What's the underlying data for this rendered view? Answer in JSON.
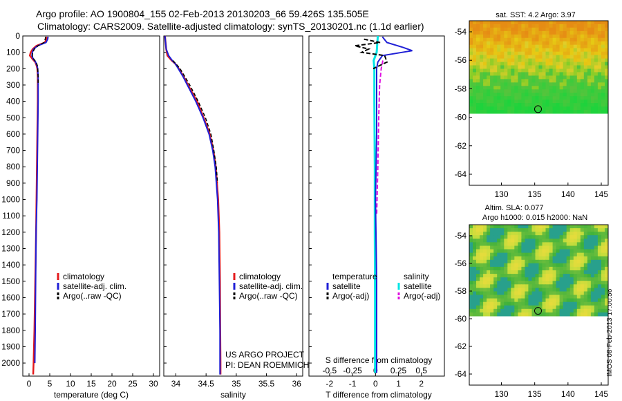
{
  "header": {
    "line1": "Argo profile: AO 1900804_155 02-Feb-2013 20130203_66 59.426S 135.505E",
    "line2": "Climatology: CARS2009. Satellite-adjusted climatology: synTS_20130201.nc (1.1d earlier)"
  },
  "stamp": "IMOS 08-Feb-2013 17:00:56",
  "colors": {
    "clim": "#e41a1c",
    "sat": "#1f1fd6",
    "argo": "#000000",
    "sat_s": "#00e5e5",
    "argo_s": "#e010e0"
  },
  "panels": {
    "temperature": {
      "xlabel": "temperature (deg C)"
    },
    "salinity": {
      "xlabel": "salinity",
      "credit1": "US ARGO PROJECT",
      "credit2": "PI: DEAN ROEMMICH"
    },
    "difference": {
      "xlabel": "T difference from climatology",
      "toplabel": "S difference from climatology"
    }
  },
  "legend_ts": {
    "items": [
      "climatology",
      "satellite-adj. clim.",
      "Argo(..raw -QC)"
    ]
  },
  "legend_diff": {
    "temperature": "temperature",
    "salinity": "salinity",
    "sat": "satellite",
    "argo": "Argo(-adj)"
  },
  "maps": {
    "sst_title": "sat. SST: 4.2 Argo: 3.97",
    "sla_title1": "Altim. SLA: 0.077",
    "sla_title2": "Argo h1000: 0.015 h2000: NaN",
    "lat_ticks": [
      "-54",
      "-56",
      "-58",
      "-60",
      "-62",
      "-64"
    ],
    "lon_ticks": [
      "130",
      "135",
      "140",
      "145"
    ],
    "lat_values": [
      -54,
      -56,
      -58,
      -60,
      -62,
      -64
    ],
    "lon_values": [
      130,
      135,
      140,
      145
    ]
  },
  "chart_data": [
    {
      "type": "line",
      "xlabel": "temperature (deg C)",
      "ylabel": "",
      "xlim": [
        -1.5,
        31.5
      ],
      "ylim": [
        0,
        2080
      ],
      "xticks": [
        "0",
        "5",
        "10",
        "15",
        "20",
        "25",
        "30"
      ],
      "yticks": [
        "0",
        "100",
        "200",
        "300",
        "400",
        "500",
        "600",
        "700",
        "800",
        "900",
        "1000",
        "1100",
        "1200",
        "1300",
        "1400",
        "1500",
        "1600",
        "1700",
        "1800",
        "1900",
        "2000"
      ],
      "series": [
        {
          "name": "climatology",
          "y": [
            5,
            20,
            40,
            60,
            80,
            100,
            120,
            140,
            160,
            180,
            200,
            250,
            300,
            400,
            600,
            800,
            1000,
            1200,
            1500,
            1800,
            2000,
            2070
          ],
          "x": [
            4.3,
            4.2,
            3.8,
            1.8,
            0.9,
            0.4,
            0.2,
            0.8,
            1.5,
            1.8,
            2.0,
            2.1,
            2.1,
            2.1,
            2.0,
            1.9,
            1.8,
            1.7,
            1.5,
            1.3,
            1.1,
            1.0
          ]
        },
        {
          "name": "satellite-adj. clim.",
          "y": [
            5,
            20,
            40,
            60,
            80,
            100,
            120,
            140,
            160,
            180,
            200,
            250,
            300,
            400,
            600,
            800,
            1000,
            1200,
            1500,
            1800,
            2000
          ],
          "x": [
            4.6,
            4.5,
            4.1,
            2.1,
            1.1,
            0.8,
            0.7,
            1.0,
            1.6,
            1.9,
            2.1,
            2.2,
            2.2,
            2.2,
            2.1,
            2.0,
            1.9,
            1.7,
            1.6,
            1.5,
            1.4
          ]
        },
        {
          "name": "Argo(..raw -QC)",
          "y": [
            5,
            20,
            40,
            60,
            80,
            100,
            120,
            140,
            160,
            180,
            200,
            250,
            300
          ],
          "x": [
            4.0,
            3.9,
            3.6,
            2.2,
            1.3,
            0.9,
            0.8,
            1.1,
            1.7,
            2.0,
            2.1,
            2.2,
            2.2
          ]
        }
      ]
    },
    {
      "type": "line",
      "xlabel": "salinity",
      "ylabel": "",
      "xlim": [
        33.8,
        36.1
      ],
      "ylim": [
        0,
        2080
      ],
      "xticks": [
        "34",
        "34.5",
        "35",
        "35.5",
        "36"
      ],
      "series": [
        {
          "name": "climatology",
          "y": [
            0,
            80,
            120,
            150,
            170,
            200,
            250,
            300,
            400,
            500,
            600,
            700,
            800,
            1000,
            1200,
            1500,
            1800,
            2000,
            2070
          ],
          "x": [
            33.82,
            33.84,
            33.86,
            33.93,
            33.99,
            34.05,
            34.13,
            34.2,
            34.35,
            34.46,
            34.56,
            34.62,
            34.66,
            34.7,
            34.72,
            34.73,
            34.735,
            34.74,
            34.74
          ]
        },
        {
          "name": "satellite-adj. clim.",
          "y": [
            0,
            80,
            120,
            150,
            170,
            200,
            250,
            300,
            400,
            500,
            600,
            700,
            800,
            1000,
            1200,
            1500,
            1800,
            2000,
            2070
          ],
          "x": [
            33.82,
            33.84,
            33.88,
            33.94,
            33.99,
            34.04,
            34.12,
            34.19,
            34.33,
            34.45,
            34.55,
            34.61,
            34.65,
            34.69,
            34.71,
            34.72,
            34.73,
            34.73,
            34.73
          ]
        },
        {
          "name": "Argo(..raw -QC)",
          "y": [
            150,
            170,
            200,
            250,
            300,
            400,
            500,
            600,
            700,
            800,
            900
          ],
          "x": [
            33.95,
            34.0,
            34.07,
            34.15,
            34.23,
            34.37,
            34.49,
            34.58,
            34.63,
            34.67,
            34.69
          ]
        }
      ]
    },
    {
      "type": "line",
      "xlabel": "T difference from climatology",
      "top_xlabel": "S difference from climatology",
      "xlim": [
        -2.9,
        3.0
      ],
      "ylim": [
        0,
        2080
      ],
      "xticks": [
        "-2",
        "-1",
        "0",
        "1",
        "2"
      ],
      "top_xticks": [
        "-0.5",
        "-0.25",
        "0",
        "0.25",
        "0.5"
      ],
      "series": [
        {
          "name": "satellite (temperature)",
          "y": [
            5,
            40,
            70,
            90,
            120,
            160,
            200,
            300,
            600,
            1000,
            1500,
            2000,
            2060
          ],
          "x": [
            0.3,
            0.5,
            1.2,
            1.6,
            0.3,
            0.1,
            0.05,
            0.05,
            0.05,
            0.0,
            0.05,
            0.05,
            0.05
          ]
        },
        {
          "name": "Argo(-adj) (temperature)",
          "y": [
            20,
            40,
            60,
            80,
            100,
            120,
            160,
            200
          ],
          "x": [
            -0.5,
            0.2,
            -0.9,
            -0.3,
            -0.6,
            0.4,
            0.5,
            -0.1
          ]
        },
        {
          "name": "satellite (salinity)",
          "y": [
            0,
            100,
            150,
            200,
            400,
            800,
            1200,
            1600,
            2000,
            2060
          ],
          "x": [
            0.1,
            0.05,
            -0.08,
            -0.05,
            -0.05,
            -0.03,
            -0.03,
            -0.02,
            -0.02,
            -0.02
          ]
        },
        {
          "name": "Argo(-adj) (salinity)",
          "y": [
            150,
            200,
            300,
            500,
            800,
            1100
          ],
          "x": [
            0.32,
            0.25,
            0.18,
            0.14,
            0.1,
            0.05
          ]
        }
      ]
    }
  ]
}
